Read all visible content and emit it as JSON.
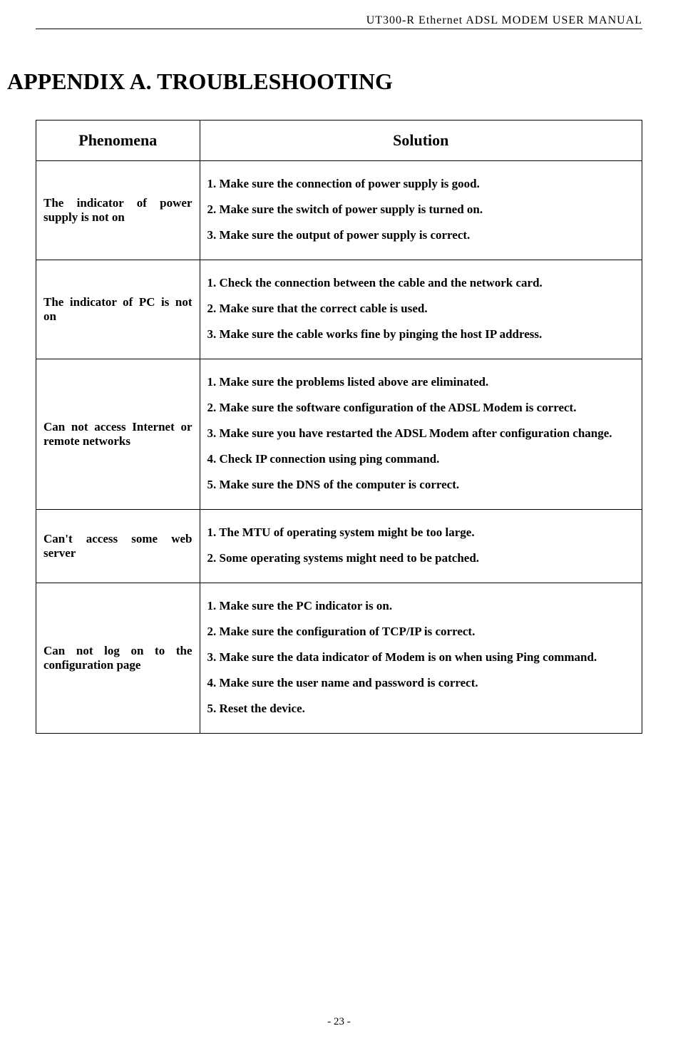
{
  "header": "UT300-R Ethernet ADSL MODEM USER MANUAL",
  "title": "APPENDIX A. TROUBLESHOOTING",
  "columns": {
    "phenomena": "Phenomena",
    "solution": "Solution"
  },
  "rows": [
    {
      "phenomena": "The indicator of power supply is not on",
      "solutions": [
        "1.  Make sure the connection of power supply is good.",
        "2.  Make sure the switch of power supply is turned on.",
        "3.  Make sure the output of power supply is correct."
      ]
    },
    {
      "phenomena": "The indicator of PC is not on",
      "solutions": [
        "1.  Check the connection between the cable and the network card.",
        "2.  Make sure that the correct cable is used.",
        "3.  Make sure the cable works fine by pinging the host IP address."
      ]
    },
    {
      "phenomena": "Can not access Internet or remote networks",
      "solutions": [
        "1.  Make sure the problems listed above are eliminated.",
        "2.  Make sure the software configuration of the ADSL Modem is correct.",
        "3.  Make sure you have restarted the ADSL Modem after configuration change.",
        "4.  Check IP connection using ping command.",
        "5.  Make sure the DNS of the computer is correct."
      ]
    },
    {
      "phenomena": "Can't access some web server",
      "solutions": [
        "1.  The MTU of operating system might be too large.",
        "2.  Some operating systems might need to be patched."
      ]
    },
    {
      "phenomena": "Can not log on to the configuration page",
      "solutions": [
        "1.  Make sure the PC indicator is on.",
        "2.  Make sure the configuration of TCP/IP is correct.",
        "3.  Make sure the data indicator of Modem is on when using Ping command.",
        "4.  Make sure the user name and password is correct.",
        "5.  Reset the device."
      ]
    }
  ],
  "footer": "- 23 -"
}
